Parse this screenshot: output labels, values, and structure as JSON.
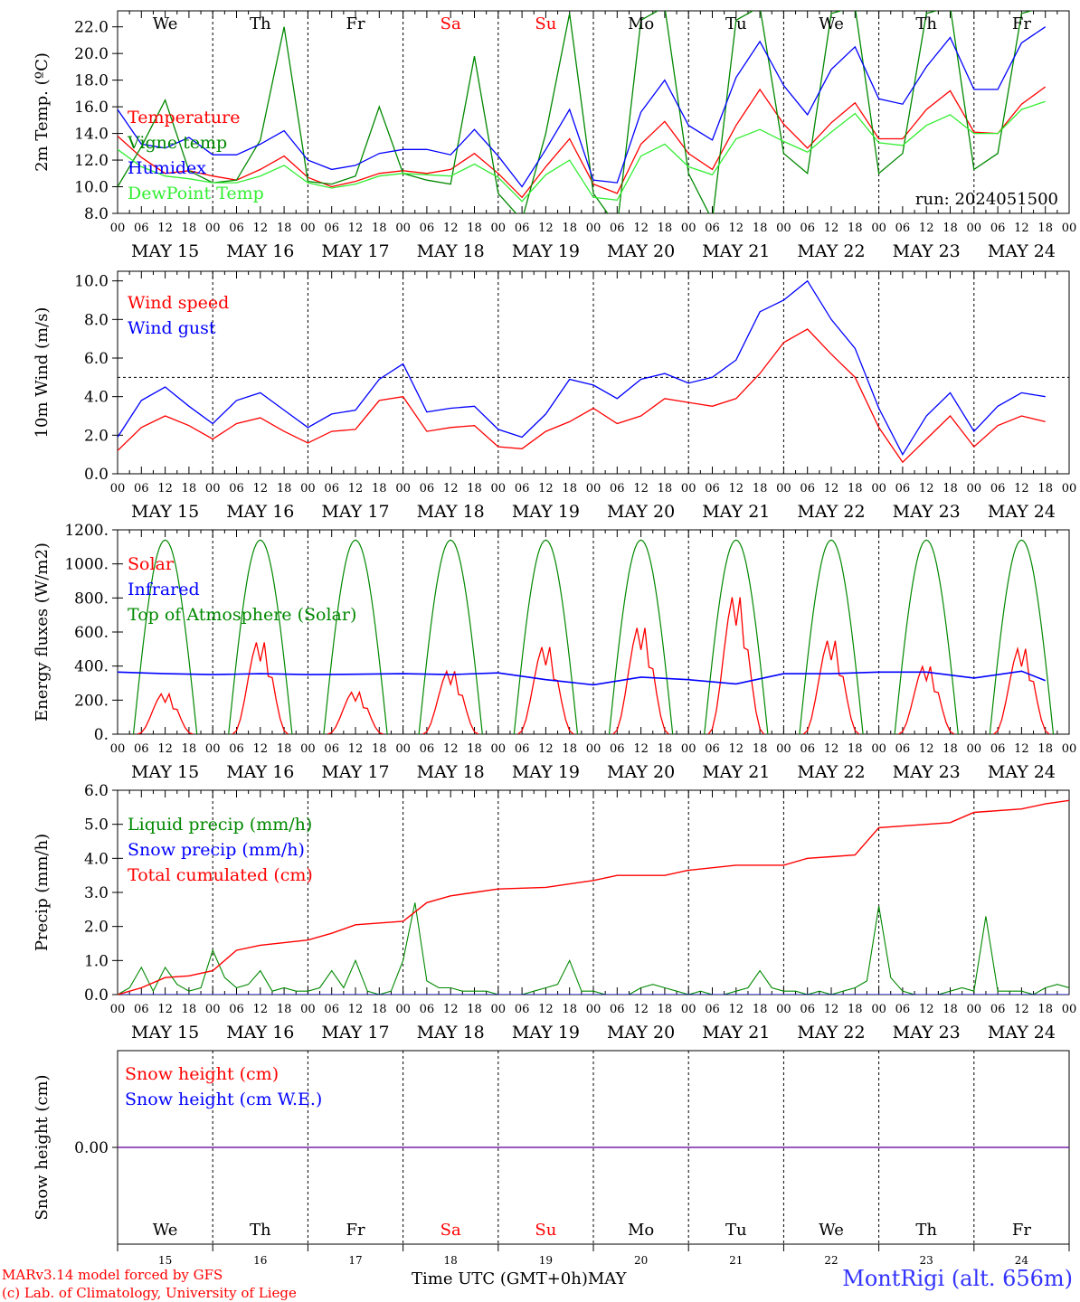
{
  "run_label": "run: 2024051500",
  "footer": {
    "credit_line1": "MARv3.14 model forced by GFS",
    "credit_line2": "(c) Lab. of Climatology, University of Liege",
    "time_label": "Time UTC (GMT+0h)",
    "month_label": "MAY",
    "station": "MontRigi (alt. 656m)"
  },
  "day_names": [
    "We",
    "Th",
    "Fr",
    "Sa",
    "Su",
    "Mo",
    "Tu",
    "We",
    "Th",
    "Fr"
  ],
  "weekend_indices": [
    3,
    4
  ],
  "date_labels": [
    "MAY 15",
    "MAY 16",
    "MAY 17",
    "MAY 18",
    "MAY 19",
    "MAY 20",
    "MAY 21",
    "MAY 22",
    "MAY 23",
    "MAY 24"
  ],
  "day_numbers": [
    "15",
    "16",
    "17",
    "18",
    "19",
    "20",
    "21",
    "22",
    "23",
    "24"
  ],
  "hour_ticks": [
    "00",
    "06",
    "12",
    "18"
  ],
  "colors": {
    "red": "#ff0000",
    "blue": "#0000ff",
    "green": "#008800",
    "lightgreen": "#33ee33",
    "purple": "#7722aa"
  },
  "chart_data": [
    {
      "type": "line",
      "ylabel": "2m Temp. (ºC)",
      "ylim": [
        8,
        23.2
      ],
      "yticks": [
        "22.0",
        "20.0",
        "18.0",
        "16.0",
        "14.0",
        "12.0",
        "10.0",
        "8.0"
      ],
      "ytick_values": [
        22,
        20,
        18,
        16,
        14,
        12,
        10,
        8
      ],
      "x_unit": "hours since 2024-05-15 00 UTC",
      "series": [
        {
          "name": "Temperature",
          "color": "#ff0000",
          "x": [
            0,
            6,
            12,
            18,
            24,
            30,
            36,
            42,
            48,
            54,
            60,
            66,
            72,
            78,
            84,
            90,
            96,
            102,
            108,
            114,
            120,
            126,
            132,
            138,
            144,
            150,
            156,
            162,
            168,
            174,
            180,
            186,
            192,
            198,
            204,
            210,
            216,
            222,
            228,
            234
          ],
          "values": [
            13.8,
            12.2,
            11.0,
            11.2,
            10.8,
            10.5,
            11.3,
            12.3,
            10.7,
            10.0,
            10.4,
            11.0,
            11.2,
            11.0,
            11.3,
            12.5,
            11.0,
            9.2,
            11.5,
            13.6,
            10.2,
            9.5,
            13.2,
            14.9,
            12.5,
            11.3,
            14.6,
            17.3,
            14.7,
            12.9,
            14.8,
            16.3,
            13.6,
            13.6,
            15.8,
            17.2,
            14.1,
            14.0,
            16.2,
            17.5
          ]
        },
        {
          "name": "Vigne temp",
          "color": "#008800",
          "x": [
            0,
            6,
            12,
            18,
            24,
            30,
            36,
            42,
            48,
            54,
            60,
            66,
            72,
            78,
            84,
            90,
            96,
            102,
            108,
            114,
            120,
            126,
            132,
            138,
            144,
            150,
            156,
            162,
            168,
            174,
            180,
            186,
            192,
            198,
            204,
            210,
            216,
            222,
            228,
            234
          ],
          "values": [
            10.0,
            13.0,
            16.5,
            11.2,
            10.3,
            10.5,
            13.5,
            22.0,
            10.4,
            10.2,
            10.8,
            16.0,
            11.0,
            10.5,
            10.2,
            19.8,
            9.5,
            7.5,
            14.0,
            23.0,
            9.5,
            7.0,
            22.5,
            23.5,
            11.0,
            7.5,
            22.5,
            23.5,
            12.5,
            11.0,
            23.0,
            23.5,
            11.0,
            12.5,
            23.0,
            23.5,
            11.3,
            12.5,
            23.0,
            23.5
          ]
        },
        {
          "name": "Humidex",
          "color": "#0000ff",
          "x": [
            0,
            6,
            12,
            18,
            24,
            30,
            36,
            42,
            48,
            54,
            60,
            66,
            72,
            78,
            84,
            90,
            96,
            102,
            108,
            114,
            120,
            126,
            132,
            138,
            144,
            150,
            156,
            162,
            168,
            174,
            180,
            186,
            192,
            198,
            204,
            210,
            216,
            222,
            228,
            234
          ],
          "values": [
            15.8,
            13.2,
            12.9,
            13.7,
            12.4,
            12.4,
            13.2,
            14.2,
            12.0,
            11.3,
            11.6,
            12.5,
            12.8,
            12.8,
            12.4,
            14.3,
            12.3,
            10.0,
            12.8,
            15.8,
            10.5,
            10.3,
            15.6,
            18.0,
            14.6,
            13.5,
            18.2,
            20.9,
            17.6,
            15.4,
            18.8,
            20.5,
            16.6,
            16.2,
            19.0,
            21.2,
            17.3,
            17.3,
            20.8,
            22.0
          ]
        },
        {
          "name": "DewPoint Temp",
          "color": "#33ee33",
          "x": [
            0,
            6,
            12,
            18,
            24,
            30,
            36,
            42,
            48,
            54,
            60,
            66,
            72,
            78,
            84,
            90,
            96,
            102,
            108,
            114,
            120,
            126,
            132,
            138,
            144,
            150,
            156,
            162,
            168,
            174,
            180,
            186,
            192,
            198,
            204,
            210,
            216,
            222,
            228,
            234
          ],
          "values": [
            12.8,
            11.5,
            10.8,
            10.6,
            10.3,
            10.3,
            10.8,
            11.6,
            10.3,
            9.9,
            10.2,
            10.8,
            11.0,
            10.9,
            10.8,
            11.7,
            10.7,
            8.9,
            10.9,
            12.0,
            9.2,
            9.0,
            12.3,
            13.2,
            11.5,
            10.9,
            13.6,
            14.3,
            13.4,
            12.6,
            14.1,
            15.5,
            13.3,
            13.1,
            14.6,
            15.4,
            14.0,
            14.0,
            15.8,
            16.4
          ]
        }
      ]
    },
    {
      "type": "line",
      "ylabel": "10m Wind (m/s)",
      "ylim": [
        0,
        10.5
      ],
      "yticks": [
        "10.0",
        "8.0",
        "6.0",
        "4.0",
        "2.0",
        "0.0"
      ],
      "ytick_values": [
        10,
        8,
        6,
        4,
        2,
        0
      ],
      "x_unit": "hours since 2024-05-15 00 UTC",
      "reference_line": 5.0,
      "series": [
        {
          "name": "Wind speed",
          "color": "#ff0000",
          "x": [
            0,
            6,
            12,
            18,
            24,
            30,
            36,
            42,
            48,
            54,
            60,
            66,
            72,
            78,
            84,
            90,
            96,
            102,
            108,
            114,
            120,
            126,
            132,
            138,
            144,
            150,
            156,
            162,
            168,
            174,
            180,
            186,
            192,
            198,
            204,
            210,
            216,
            222,
            228,
            234
          ],
          "values": [
            1.2,
            2.4,
            3.0,
            2.5,
            1.8,
            2.6,
            2.9,
            2.2,
            1.6,
            2.2,
            2.3,
            3.8,
            4.0,
            2.2,
            2.4,
            2.5,
            1.4,
            1.3,
            2.2,
            2.7,
            3.4,
            2.6,
            3.0,
            3.9,
            3.7,
            3.5,
            3.9,
            5.2,
            6.8,
            7.5,
            6.2,
            5.0,
            2.4,
            0.6,
            1.8,
            3.0,
            1.4,
            2.5,
            3.0,
            2.7
          ]
        },
        {
          "name": "Wind gust",
          "color": "#0000ff",
          "x": [
            0,
            6,
            12,
            18,
            24,
            30,
            36,
            42,
            48,
            54,
            60,
            66,
            72,
            78,
            84,
            90,
            96,
            102,
            108,
            114,
            120,
            126,
            132,
            138,
            144,
            150,
            156,
            162,
            168,
            174,
            180,
            186,
            192,
            198,
            204,
            210,
            216,
            222,
            228,
            234
          ],
          "values": [
            1.9,
            3.8,
            4.5,
            3.5,
            2.6,
            3.8,
            4.2,
            3.3,
            2.4,
            3.1,
            3.3,
            4.9,
            5.7,
            3.2,
            3.4,
            3.5,
            2.3,
            1.9,
            3.1,
            4.9,
            4.6,
            3.9,
            4.9,
            5.2,
            4.7,
            5.0,
            5.9,
            8.4,
            9.0,
            10.0,
            8.0,
            6.5,
            3.4,
            1.0,
            3.0,
            4.2,
            2.2,
            3.5,
            4.2,
            4.0
          ]
        }
      ]
    },
    {
      "type": "line",
      "ylabel": "Energy fluxes (W/m2)",
      "ylim": [
        0,
        1200
      ],
      "yticks": [
        "1200.",
        "1000.",
        "800.",
        "600.",
        "400.",
        "200.",
        "0."
      ],
      "ytick_values": [
        1200,
        1000,
        800,
        600,
        400,
        200,
        0
      ],
      "x_unit": "hours since 2024-05-15 00 UTC",
      "series": [
        {
          "name": "Solar",
          "color": "#ff0000",
          "daily_peaks": [
            250,
            570,
            260,
            390,
            540,
            660,
            850,
            580,
            420,
            530
          ]
        },
        {
          "name": "Infrared",
          "color": "#0000ff",
          "x": [
            0,
            12,
            24,
            36,
            48,
            60,
            72,
            84,
            96,
            108,
            120,
            132,
            144,
            156,
            168,
            180,
            192,
            204,
            216,
            228,
            234
          ],
          "values": [
            365,
            355,
            350,
            355,
            350,
            352,
            355,
            350,
            360,
            320,
            290,
            335,
            320,
            295,
            355,
            355,
            365,
            365,
            330,
            370,
            315
          ]
        },
        {
          "name": "Top of Atmosphere (Solar)",
          "color": "#008800",
          "daily_peak": 1140,
          "sunrise_hour": 4,
          "sunset_hour": 20
        }
      ]
    },
    {
      "type": "line",
      "ylabel": "Precip (mm/h)",
      "ylim": [
        0,
        6
      ],
      "yticks": [
        "6.0",
        "5.0",
        "4.0",
        "3.0",
        "2.0",
        "1.0",
        "0.0"
      ],
      "ytick_values": [
        6,
        5,
        4,
        3,
        2,
        1,
        0
      ],
      "x_unit": "hours since 2024-05-15 00 UTC",
      "series": [
        {
          "name": "Liquid precip (mm/h)",
          "color": "#008800",
          "x": [
            0,
            3,
            6,
            9,
            12,
            15,
            18,
            21,
            24,
            27,
            30,
            33,
            36,
            39,
            42,
            45,
            48,
            51,
            54,
            57,
            60,
            63,
            66,
            69,
            72,
            75,
            78,
            81,
            84,
            87,
            90,
            93,
            96,
            99,
            102,
            105,
            108,
            111,
            114,
            117,
            120,
            123,
            126,
            129,
            132,
            135,
            138,
            141,
            144,
            147,
            150,
            153,
            156,
            159,
            162,
            165,
            168,
            171,
            174,
            177,
            180,
            183,
            186,
            189,
            192,
            195,
            198,
            201,
            204,
            207,
            210,
            213,
            216,
            219,
            222,
            225,
            228,
            231,
            234,
            237,
            240
          ],
          "values": [
            0,
            0.2,
            0.8,
            0.1,
            0.8,
            0.3,
            0.1,
            0.2,
            1.3,
            0.5,
            0.2,
            0.3,
            0.7,
            0.1,
            0.2,
            0.1,
            0.1,
            0.2,
            0.7,
            0.2,
            1.0,
            0.1,
            0,
            0.1,
            1.0,
            2.7,
            0.4,
            0.2,
            0.2,
            0.1,
            0.1,
            0.1,
            0,
            0,
            0,
            0.1,
            0.2,
            0.3,
            1.0,
            0.1,
            0.1,
            0,
            0,
            0,
            0.2,
            0.3,
            0.2,
            0.1,
            0,
            0.1,
            0,
            0,
            0.1,
            0.2,
            0.7,
            0.2,
            0.1,
            0.1,
            0,
            0.1,
            0,
            0.1,
            0.2,
            0.4,
            2.6,
            0.5,
            0.1,
            0,
            0,
            0,
            0.1,
            0.2,
            0.1,
            2.3,
            0.1,
            0.1,
            0.1,
            0,
            0.2,
            0.3,
            0.2
          ]
        },
        {
          "name": "Snow precip (mm/h)",
          "color": "#0000ff",
          "constant": 0
        },
        {
          "name": "Total cumulated (cm)",
          "color": "#ff0000",
          "x": [
            0,
            6,
            12,
            18,
            24,
            30,
            36,
            48,
            54,
            60,
            72,
            78,
            84,
            90,
            96,
            108,
            120,
            126,
            132,
            138,
            144,
            156,
            168,
            174,
            180,
            186,
            192,
            204,
            210,
            216,
            228,
            234,
            240
          ],
          "values": [
            0,
            0.2,
            0.5,
            0.55,
            0.7,
            1.3,
            1.45,
            1.6,
            1.8,
            2.05,
            2.15,
            2.7,
            2.9,
            3.0,
            3.1,
            3.15,
            3.35,
            3.5,
            3.5,
            3.5,
            3.65,
            3.8,
            3.8,
            4.0,
            4.05,
            4.1,
            4.9,
            5.0,
            5.05,
            5.35,
            5.45,
            5.6,
            5.7
          ]
        }
      ]
    },
    {
      "type": "line",
      "ylabel": "Snow height (cm)",
      "ylim": [
        -1,
        1
      ],
      "yticks": [
        "0.00"
      ],
      "ytick_values": [
        0
      ],
      "series": [
        {
          "name": "Snow height (cm)",
          "color": "#ff0000",
          "constant": 0
        },
        {
          "name": "Snow height (cm W.E.)",
          "color": "#0000ff",
          "constant": 0
        }
      ]
    }
  ]
}
